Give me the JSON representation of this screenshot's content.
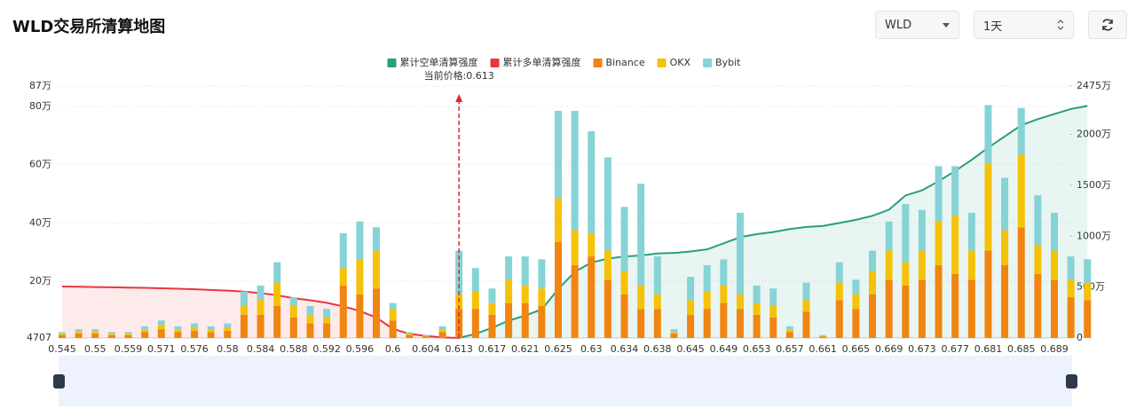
{
  "header": {
    "title": "WLD交易所清算地图",
    "symbol": "WLD",
    "period": "1天"
  },
  "chart_data": {
    "type": "bar",
    "stacked": true,
    "annotation": {
      "label": "当前价格:",
      "value": "0.613"
    },
    "categories": [
      "0.545",
      null,
      "0.55",
      null,
      "0.559",
      null,
      "0.571",
      null,
      "0.576",
      null,
      "0.58",
      null,
      "0.584",
      null,
      "0.588",
      null,
      "0.592",
      null,
      "0.596",
      null,
      "0.6",
      null,
      "0.604",
      null,
      "0.613",
      null,
      "0.617",
      null,
      "0.621",
      null,
      "0.625",
      null,
      "0.63",
      null,
      "0.634",
      null,
      "0.638",
      null,
      "0.645",
      null,
      "0.649",
      null,
      "0.653",
      null,
      "0.657",
      null,
      "0.661",
      null,
      "0.665",
      null,
      "0.669",
      null,
      "0.673",
      null,
      "0.677",
      null,
      "0.681",
      null,
      "0.685",
      null,
      "0.689",
      null,
      null
    ],
    "series": [
      {
        "name": "累计空单清算强度",
        "type": "line",
        "axis": "y2",
        "color": "#26a07c",
        "fill": "rgba(38,160,124,0.10)",
        "values": [
          null,
          null,
          null,
          null,
          null,
          null,
          null,
          null,
          null,
          null,
          null,
          null,
          null,
          null,
          null,
          null,
          null,
          null,
          null,
          null,
          null,
          null,
          null,
          null,
          0,
          400000,
          1000000,
          1700000,
          2200000,
          2800000,
          4800000,
          6500000,
          7400000,
          7800000,
          8000000,
          8100000,
          8300000,
          8350000,
          8500000,
          8700000,
          9300000,
          9900000,
          10200000,
          10400000,
          10700000,
          10900000,
          11000000,
          11300000,
          11600000,
          12000000,
          12600000,
          14000000,
          14500000,
          15400000,
          16400000,
          17500000,
          18700000,
          19800000,
          20900000,
          21500000,
          22000000,
          22500000,
          22800000
        ]
      },
      {
        "name": "累计多单清算强度",
        "type": "line",
        "axis": "y2",
        "color": "#e8363d",
        "fill": "rgba(232,54,61,0.10)",
        "values": [
          5050000,
          5030000,
          5000000,
          4980000,
          4950000,
          4920000,
          4880000,
          4840000,
          4780000,
          4720000,
          4650000,
          4550000,
          4400000,
          4200000,
          3900000,
          3700000,
          3450000,
          3100000,
          2650000,
          2000000,
          900000,
          400000,
          200000,
          50000,
          0,
          null,
          null,
          null,
          null,
          null,
          null,
          null,
          null,
          null,
          null,
          null,
          null,
          null,
          null,
          null,
          null,
          null,
          null,
          null,
          null,
          null,
          null,
          null,
          null,
          null,
          null,
          null,
          null,
          null,
          null,
          null,
          null,
          null,
          null,
          null,
          null,
          null,
          null
        ]
      },
      {
        "name": "Binance",
        "type": "bar",
        "color": "#f08511",
        "values": [
          10000,
          15000,
          15000,
          10000,
          10000,
          20000,
          30000,
          20000,
          25000,
          20000,
          25000,
          80000,
          80000,
          110000,
          70000,
          50000,
          50000,
          180000,
          150000,
          170000,
          60000,
          10000,
          5000,
          20000,
          100000,
          100000,
          80000,
          120000,
          120000,
          110000,
          330000,
          250000,
          280000,
          200000,
          150000,
          100000,
          100000,
          15000,
          80000,
          100000,
          120000,
          100000,
          80000,
          70000,
          20000,
          90000,
          5000,
          130000,
          100000,
          150000,
          200000,
          180000,
          200000,
          250000,
          220000,
          200000,
          300000,
          250000,
          380000,
          220000,
          200000,
          140000,
          130000
        ]
      },
      {
        "name": "OKX",
        "type": "bar",
        "color": "#f5c20a",
        "values": [
          5000,
          8000,
          7000,
          5000,
          5000,
          10000,
          15000,
          10000,
          12000,
          10000,
          12000,
          30000,
          50000,
          80000,
          40000,
          30000,
          20000,
          60000,
          120000,
          130000,
          40000,
          5000,
          3000,
          10000,
          50000,
          60000,
          40000,
          80000,
          60000,
          60000,
          150000,
          120000,
          80000,
          100000,
          80000,
          80000,
          50000,
          5000,
          50000,
          60000,
          60000,
          50000,
          40000,
          40000,
          10000,
          40000,
          3000,
          60000,
          50000,
          80000,
          100000,
          80000,
          100000,
          150000,
          200000,
          100000,
          300000,
          120000,
          250000,
          100000,
          100000,
          60000,
          60000
        ]
      },
      {
        "name": "Bybit",
        "type": "bar",
        "color": "#86d3d6",
        "values": [
          5000,
          7000,
          8000,
          5000,
          5000,
          10000,
          15000,
          10000,
          13000,
          10000,
          13000,
          50000,
          50000,
          70000,
          30000,
          30000,
          30000,
          120000,
          130000,
          80000,
          20000,
          5000,
          2000,
          10000,
          150000,
          80000,
          50000,
          80000,
          100000,
          100000,
          300000,
          410000,
          350000,
          320000,
          220000,
          350000,
          130000,
          10000,
          80000,
          90000,
          90000,
          280000,
          60000,
          60000,
          10000,
          60000,
          2000,
          70000,
          50000,
          70000,
          100000,
          200000,
          140000,
          190000,
          170000,
          130000,
          200000,
          180000,
          160000,
          170000,
          130000,
          80000,
          80000
        ]
      }
    ],
    "ylim": [
      4707,
      870000
    ],
    "yticks": [
      4707,
      {
        "value": 200000,
        "label": "20万"
      },
      {
        "value": 400000,
        "label": "40万"
      },
      {
        "value": 600000,
        "label": "60万"
      },
      {
        "value": 800000,
        "label": "80万"
      },
      {
        "value": 870000,
        "label": "87万"
      }
    ],
    "y2lim": [
      0,
      24750000
    ],
    "y2ticks": [
      0,
      {
        "value": 5000000,
        "label": "500万"
      },
      {
        "value": 10000000,
        "label": "1000万"
      },
      {
        "value": 15000000,
        "label": "1500万"
      },
      {
        "value": 20000000,
        "label": "2000万"
      },
      {
        "value": 24750000,
        "label": "2475万"
      }
    ],
    "grid": true,
    "legend": "top"
  }
}
